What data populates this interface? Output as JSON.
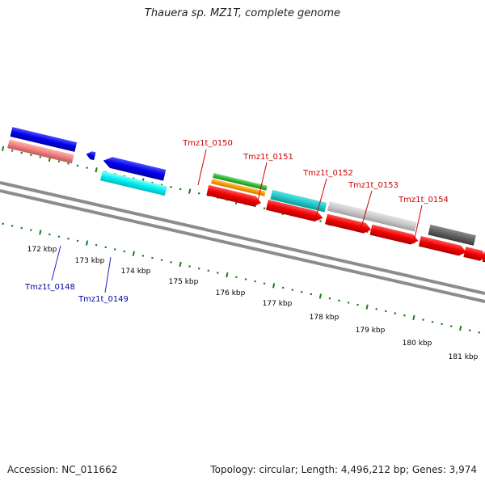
{
  "title": "Thauera sp. MZ1T, complete genome",
  "footer": {
    "accession": "Accession: NC_011662",
    "topology": "Topology: circular; Length: 4,496,212 bp; Genes: 3,974"
  },
  "kbp_labels": [
    "172 kbp",
    "173 kbp",
    "174 kbp",
    "175 kbp",
    "176 kbp",
    "177 kbp",
    "178 kbp",
    "179 kbp",
    "180 kbp",
    "181 kbp"
  ],
  "gene_labels": [
    {
      "id": "Tmz1t_0148",
      "color": "#0000aa"
    },
    {
      "id": "Tmz1t_0149",
      "color": "#0000aa"
    },
    {
      "id": "Tmz1t_0150",
      "color": "#cc0000"
    },
    {
      "id": "Tmz1t_0151",
      "color": "#cc0000"
    },
    {
      "id": "Tmz1t_0152",
      "color": "#cc0000"
    },
    {
      "id": "Tmz1t_0153",
      "color": "#cc0000"
    },
    {
      "id": "Tmz1t_0154",
      "color": "#cc0000"
    }
  ],
  "colors": {
    "backbone": "#8c8c8c",
    "tick": "#1f7a1f",
    "forward_cds": "#ee0000",
    "reverse_cds": "#0000ee",
    "cyan": "#00e0e6",
    "teal": "#20c8c8",
    "salmon": "#ee8080",
    "green": "#33bb33",
    "orange": "#ff9900",
    "light_gray": "#c8c8c8",
    "dark_gray": "#606060"
  }
}
